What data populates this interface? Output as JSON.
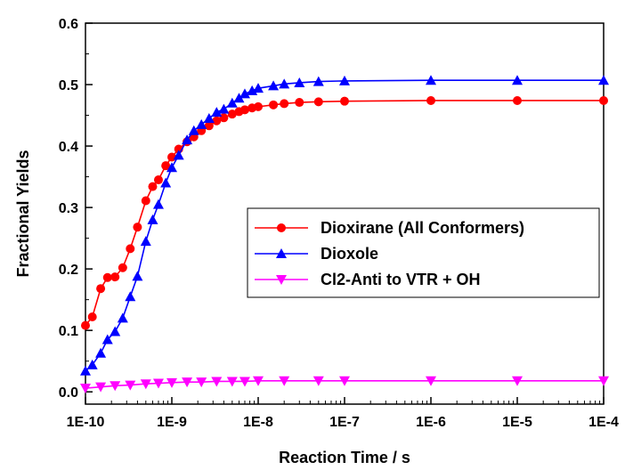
{
  "chart_data": {
    "type": "line",
    "xlabel": "Reaction Time / s",
    "ylabel": "Fractional Yields",
    "x_scale": "log",
    "xlim": [
      1e-10,
      0.0001
    ],
    "ylim": [
      -0.02,
      0.6
    ],
    "x_tick_labels": [
      "1E-10",
      "1E-9",
      "1E-8",
      "1E-7",
      "1E-6",
      "1E-5",
      "1E-4"
    ],
    "y_tick_labels": [
      "0.0",
      "0.1",
      "0.2",
      "0.3",
      "0.4",
      "0.5",
      "0.6"
    ],
    "grid": false,
    "legend_position": "center-right",
    "series": [
      {
        "name": "Dioxirane (All Conformers)",
        "color": "#ff0000",
        "marker": "circle",
        "x": [
          1e-10,
          1.2e-10,
          1.5e-10,
          1.8e-10,
          2.2e-10,
          2.7e-10,
          3.3e-10,
          4e-10,
          5e-10,
          6e-10,
          7e-10,
          8.5e-10,
          1e-09,
          1.2e-09,
          1.5e-09,
          1.8e-09,
          2.2e-09,
          2.7e-09,
          3.3e-09,
          4e-09,
          5e-09,
          6e-09,
          7e-09,
          8.5e-09,
          1e-08,
          1.5e-08,
          2e-08,
          3e-08,
          5e-08,
          1e-07,
          1e-06,
          1e-05,
          0.0001
        ],
        "values": [
          0.108,
          0.122,
          0.168,
          0.186,
          0.187,
          0.202,
          0.233,
          0.268,
          0.311,
          0.334,
          0.345,
          0.368,
          0.382,
          0.395,
          0.407,
          0.415,
          0.425,
          0.433,
          0.441,
          0.446,
          0.452,
          0.456,
          0.459,
          0.462,
          0.464,
          0.467,
          0.469,
          0.471,
          0.472,
          0.473,
          0.474,
          0.474,
          0.474
        ]
      },
      {
        "name": "Dioxole",
        "color": "#0000ff",
        "marker": "triangle-up",
        "x": [
          1e-10,
          1.2e-10,
          1.5e-10,
          1.8e-10,
          2.2e-10,
          2.7e-10,
          3.3e-10,
          4e-10,
          5e-10,
          6e-10,
          7e-10,
          8.5e-10,
          1e-09,
          1.2e-09,
          1.5e-09,
          1.8e-09,
          2.2e-09,
          2.7e-09,
          3.3e-09,
          4e-09,
          5e-09,
          6e-09,
          7e-09,
          8.5e-09,
          1e-08,
          1.5e-08,
          2e-08,
          3e-08,
          5e-08,
          1e-07,
          1e-06,
          1e-05,
          0.0001
        ],
        "values": [
          0.034,
          0.044,
          0.063,
          0.085,
          0.098,
          0.12,
          0.155,
          0.188,
          0.245,
          0.28,
          0.305,
          0.34,
          0.365,
          0.385,
          0.41,
          0.425,
          0.435,
          0.445,
          0.455,
          0.46,
          0.47,
          0.478,
          0.485,
          0.49,
          0.494,
          0.498,
          0.501,
          0.503,
          0.505,
          0.506,
          0.507,
          0.507,
          0.507
        ]
      },
      {
        "name": "Cl2-Anti to VTR + OH",
        "color": "#ff00ff",
        "marker": "triangle-down",
        "x": [
          1e-10,
          1.5e-10,
          2.2e-10,
          3.3e-10,
          5e-10,
          7e-10,
          1e-09,
          1.5e-09,
          2.2e-09,
          3.3e-09,
          5e-09,
          7e-09,
          1e-08,
          2e-08,
          5e-08,
          1e-07,
          1e-06,
          1e-05,
          0.0001
        ],
        "values": [
          0.006,
          0.008,
          0.01,
          0.011,
          0.013,
          0.014,
          0.015,
          0.016,
          0.016,
          0.017,
          0.017,
          0.017,
          0.018,
          0.018,
          0.018,
          0.018,
          0.018,
          0.018,
          0.018
        ]
      }
    ]
  }
}
